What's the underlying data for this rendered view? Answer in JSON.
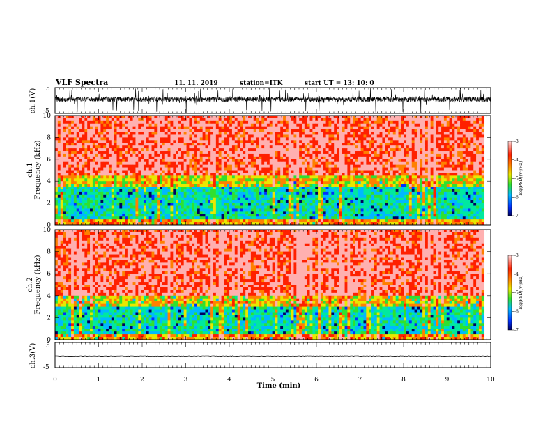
{
  "header": {
    "title": "VLF Spectra",
    "date": "11. 11. 2019",
    "station": "station=ITK",
    "start": "start UT =   13: 10: 0"
  },
  "chart_data": [
    {
      "type": "line",
      "panel": "ch1-waveform",
      "ylabel": "ch.1(V)",
      "ylim": [
        -5,
        5
      ],
      "ytick_labels": [
        "-5",
        "5"
      ],
      "xlim": [
        0,
        10
      ],
      "baseline_v": 0.5,
      "noise_band_v": [
        -2,
        3
      ],
      "spike_range_v": [
        -5,
        5
      ]
    },
    {
      "type": "heatmap",
      "panel": "ch1-spectrogram",
      "ylabel": "ch.1 Frequency (kHz)",
      "ylim": [
        0,
        10
      ],
      "ytick_labels": [
        "0",
        "2",
        "4",
        "6",
        "8",
        "10"
      ],
      "xlim": [
        0,
        9.85
      ],
      "colorbar": {
        "label": "log(PSD)(V²/Hz)",
        "range": [
          -7,
          -3
        ],
        "tick_labels": [
          "-3",
          "-4",
          "-5",
          "-6",
          "-7"
        ]
      },
      "bands": [
        {
          "freq_khz": [
            4.5,
            10
          ],
          "log_psd": -3.5
        },
        {
          "freq_khz": [
            3.5,
            4.5
          ],
          "log_psd": -4.5
        },
        {
          "freq_khz": [
            0.5,
            3.5
          ],
          "log_psd": -5.5
        },
        {
          "freq_khz": [
            0,
            0.5
          ],
          "log_psd": -4.2
        }
      ]
    },
    {
      "type": "heatmap",
      "panel": "ch2-spectrogram",
      "ylabel": "ch.2 Frequency (kHz)",
      "ylim": [
        0,
        10
      ],
      "ytick_labels": [
        "0",
        "2",
        "4",
        "6",
        "8",
        "10"
      ],
      "xlim": [
        0,
        9.85
      ],
      "colorbar": {
        "label": "log(PSD)(V²/Hz)",
        "range": [
          -7,
          -3
        ],
        "tick_labels": [
          "-3",
          "-4",
          "-5",
          "-6",
          "-7"
        ]
      },
      "bands": [
        {
          "freq_khz": [
            4.0,
            10
          ],
          "log_psd": -3.5
        },
        {
          "freq_khz": [
            3.0,
            4.0
          ],
          "log_psd": -4.5
        },
        {
          "freq_khz": [
            0.4,
            3.0
          ],
          "log_psd": -5.5
        },
        {
          "freq_khz": [
            0,
            0.4
          ],
          "log_psd": -4.2
        }
      ]
    },
    {
      "type": "line",
      "panel": "ch3-waveform",
      "ylabel": "ch.3(V)",
      "ylim": [
        -5,
        5
      ],
      "ytick_labels": [
        "-5",
        "5"
      ],
      "xlim": [
        0,
        10
      ],
      "baseline_v": -0.5,
      "xlabel": "Time (min)",
      "xtick_labels": [
        "0",
        "1",
        "2",
        "3",
        "4",
        "5",
        "6",
        "7",
        "8",
        "9",
        "10"
      ]
    }
  ],
  "colors": {
    "colormap": [
      "#000060",
      "#0030ff",
      "#00b8ff",
      "#00e8a0",
      "#30e030",
      "#e8e800",
      "#ff8000",
      "#ff2000",
      "#ffb0b0"
    ],
    "trace": "#000000"
  }
}
